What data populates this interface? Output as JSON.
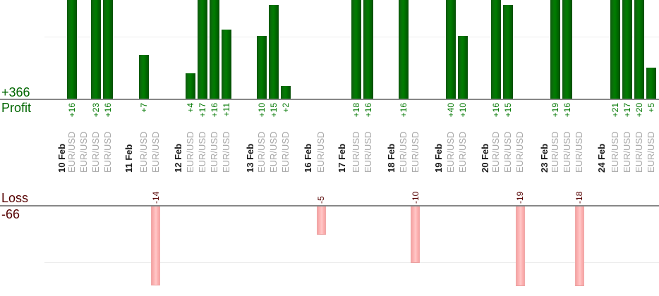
{
  "summary": {
    "profit_total": "+366",
    "profit_caption": "Profit",
    "loss_caption": "Loss",
    "loss_total": "-66"
  },
  "chart_data": {
    "type": "bar",
    "orientation": "vertical",
    "legend": "none",
    "grid": true,
    "profit_axis": {
      "baseline": 0,
      "gridlines": [
        10
      ],
      "visible_max": 16,
      "total": 366
    },
    "loss_axis": {
      "baseline": 0,
      "gridlines": [
        -10
      ],
      "visible_min": -14,
      "total": -66
    },
    "groups": [
      {
        "date": "10 Feb",
        "trades": [
          {
            "symbol": "EUR/USD",
            "value": 16,
            "label": "+16"
          },
          {
            "symbol": "EUR/USD",
            "value": 0,
            "label": ""
          },
          {
            "symbol": "EUR/USD",
            "value": 23,
            "label": "+23"
          },
          {
            "symbol": "EUR/USD",
            "value": 16,
            "label": "+16"
          }
        ]
      },
      {
        "date": "11 Feb",
        "trades": [
          {
            "symbol": "EUR/USD",
            "value": 7,
            "label": "+7"
          },
          {
            "symbol": "EUR/USD",
            "value": -14,
            "label": "-14"
          }
        ]
      },
      {
        "date": "12 Feb",
        "trades": [
          {
            "symbol": "EUR/USD",
            "value": 4,
            "label": "+4"
          },
          {
            "symbol": "EUR/USD",
            "value": 17,
            "label": "+17"
          },
          {
            "symbol": "EUR/USD",
            "value": 16,
            "label": "+16"
          },
          {
            "symbol": "EUR/USD",
            "value": 11,
            "label": "+11"
          }
        ]
      },
      {
        "date": "13 Feb",
        "trades": [
          {
            "symbol": "EUR/USD",
            "value": 10,
            "label": "+10"
          },
          {
            "symbol": "EUR/USD",
            "value": 15,
            "label": "+15"
          },
          {
            "symbol": "EUR/USD",
            "value": 2,
            "label": "+2"
          }
        ]
      },
      {
        "date": "16 Feb",
        "trades": [
          {
            "symbol": "EUR/USD",
            "value": -5,
            "label": "-5"
          }
        ]
      },
      {
        "date": "17 Feb",
        "trades": [
          {
            "symbol": "EUR/USD",
            "value": 18,
            "label": "+18"
          },
          {
            "symbol": "EUR/USD",
            "value": 16,
            "label": "+16"
          }
        ]
      },
      {
        "date": "18 Feb",
        "trades": [
          {
            "symbol": "EUR/USD",
            "value": 16,
            "label": "+16"
          },
          {
            "symbol": "EUR/USD",
            "value": -10,
            "label": "-10"
          }
        ]
      },
      {
        "date": "19 Feb",
        "trades": [
          {
            "symbol": "EUR/USD",
            "value": 40,
            "label": "+40"
          },
          {
            "symbol": "EUR/USD",
            "value": 10,
            "label": "+10"
          }
        ]
      },
      {
        "date": "20 Feb",
        "trades": [
          {
            "symbol": "EUR/USD",
            "value": 16,
            "label": "+16"
          },
          {
            "symbol": "EUR/USD",
            "value": 15,
            "label": "+15"
          },
          {
            "symbol": "EUR/USD",
            "value": -19,
            "label": "-19"
          }
        ]
      },
      {
        "date": "23 Feb",
        "trades": [
          {
            "symbol": "EUR/USD",
            "value": 19,
            "label": "+19"
          },
          {
            "symbol": "EUR/USD",
            "value": 16,
            "label": "+16"
          },
          {
            "symbol": "EUR/USD",
            "value": -18,
            "label": "-18"
          }
        ]
      },
      {
        "date": "24 Feb",
        "trades": [
          {
            "symbol": "EUR/USD",
            "value": 21,
            "label": "+21"
          },
          {
            "symbol": "EUR/USD",
            "value": 17,
            "label": "+17"
          },
          {
            "symbol": "EUR/USD",
            "value": 20,
            "label": "+20"
          },
          {
            "symbol": "EUR/USD",
            "value": 5,
            "label": "+5"
          }
        ]
      }
    ]
  },
  "colors": {
    "profit_text": "#006600",
    "profit_value_text": "#007700",
    "loss_text": "#550000",
    "date_text": "#1a1a1a",
    "symbol_text": "#a6a6a6",
    "profit_bar": "#006f00",
    "loss_bar": "#ffb3b3",
    "axis_line": "#878787",
    "gridline": "#ededed"
  }
}
